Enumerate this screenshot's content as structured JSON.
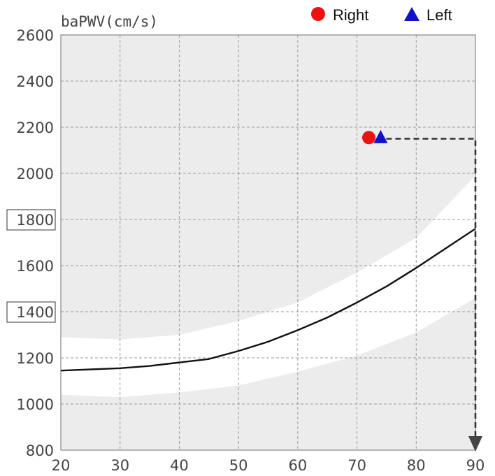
{
  "chart_data": {
    "type": "line",
    "ylabel": "baPWV(cm/s)",
    "xlabel": "",
    "title": "",
    "xlim": [
      20,
      90
    ],
    "ylim": [
      800,
      2600
    ],
    "x_ticks": [
      20,
      30,
      40,
      50,
      60,
      70,
      80,
      90
    ],
    "y_ticks": [
      800,
      1000,
      1200,
      1400,
      1600,
      1800,
      2000,
      2200,
      2400,
      2600
    ],
    "boxed_y_ticks": [
      1400,
      1800
    ],
    "grid": true,
    "legend_position": "top-right",
    "reference_curve": {
      "x": [
        20,
        25,
        30,
        35,
        40,
        45,
        50,
        55,
        60,
        65,
        70,
        75,
        80,
        85,
        90
      ],
      "y": [
        1145,
        1150,
        1155,
        1165,
        1180,
        1195,
        1230,
        1270,
        1320,
        1375,
        1440,
        1510,
        1590,
        1675,
        1760
      ]
    },
    "normal_band": {
      "x": [
        20,
        30,
        40,
        50,
        60,
        70,
        80,
        90
      ],
      "upper": [
        1290,
        1280,
        1300,
        1360,
        1440,
        1570,
        1720,
        1990
      ],
      "lower": [
        1040,
        1030,
        1050,
        1080,
        1140,
        1210,
        1310,
        1460
      ]
    },
    "series": [
      {
        "name": "Right",
        "marker": "circle",
        "color": "#ee1111",
        "x": [
          72
        ],
        "y": [
          2155
        ]
      },
      {
        "name": "Left",
        "marker": "triangle",
        "color": "#1111cc",
        "x": [
          74
        ],
        "y": [
          2155
        ]
      }
    ],
    "annotation_arrow": {
      "from_x": 74,
      "level": 2150,
      "to_x": 90,
      "down_to": 800,
      "style": "dashed",
      "color": "#333333"
    }
  }
}
